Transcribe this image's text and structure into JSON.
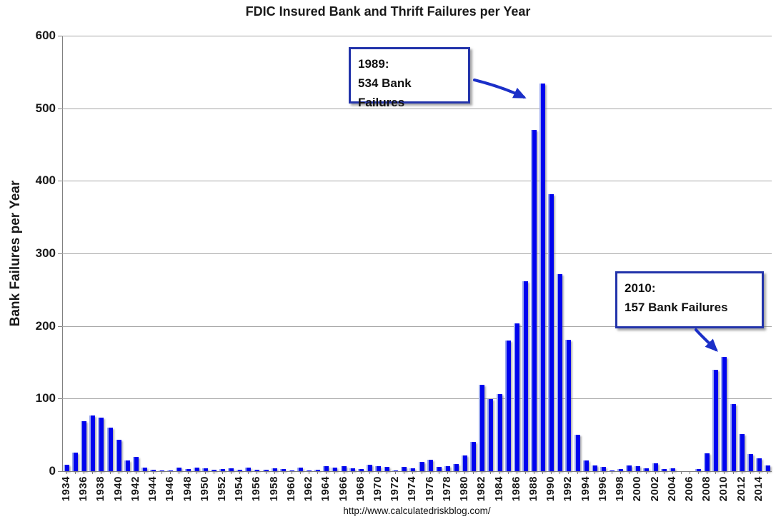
{
  "title": "FDIC Insured Bank and Thrift Failures per Year",
  "ylabel": "Bank Failures per Year",
  "footer_url": "http://www.calculatedriskblog.com/",
  "annotations": [
    {
      "line1": "1989:",
      "line2": "534 Bank Failures",
      "year": 1989,
      "value": 534
    },
    {
      "line1": "2010:",
      "line2": "157 Bank Failures",
      "year": 2010,
      "value": 157
    }
  ],
  "colors": {
    "bar": "#0004ee",
    "bar_highlight": "#9aa8f0",
    "annotation_border": "#2233aa",
    "arrow": "#1b2fc8",
    "gridline": "#a6a6a6",
    "axis": "#808080",
    "text": "#1a1a1a",
    "background": "#ffffff"
  },
  "chart_data": {
    "type": "bar",
    "title": "FDIC Insured Bank and Thrift Failures per Year",
    "xlabel": "",
    "ylabel": "Bank Failures per Year",
    "ylim": [
      0,
      600
    ],
    "ytick_interval": 100,
    "yticks": [
      0,
      100,
      200,
      300,
      400,
      500,
      600
    ],
    "grid": "horizontal",
    "legend": "none",
    "x_label_every": 2,
    "years": [
      1934,
      1935,
      1936,
      1937,
      1938,
      1939,
      1940,
      1941,
      1942,
      1943,
      1944,
      1945,
      1946,
      1947,
      1948,
      1949,
      1950,
      1951,
      1952,
      1953,
      1954,
      1955,
      1956,
      1957,
      1958,
      1959,
      1960,
      1961,
      1962,
      1963,
      1964,
      1965,
      1966,
      1967,
      1968,
      1969,
      1970,
      1971,
      1972,
      1973,
      1974,
      1975,
      1976,
      1977,
      1978,
      1979,
      1980,
      1981,
      1982,
      1983,
      1984,
      1985,
      1986,
      1987,
      1988,
      1989,
      1990,
      1991,
      1992,
      1993,
      1994,
      1995,
      1996,
      1997,
      1998,
      1999,
      2000,
      2001,
      2002,
      2003,
      2004,
      2005,
      2006,
      2007,
      2008,
      2009,
      2010,
      2011,
      2012,
      2013,
      2014,
      2015
    ],
    "values": [
      9,
      26,
      69,
      77,
      74,
      60,
      43,
      15,
      20,
      5,
      2,
      1,
      1,
      5,
      3,
      5,
      4,
      2,
      3,
      4,
      2,
      5,
      2,
      2,
      4,
      3,
      1,
      5,
      1,
      2,
      7,
      5,
      7,
      4,
      3,
      9,
      7,
      6,
      1,
      6,
      4,
      13,
      16,
      6,
      7,
      10,
      22,
      40,
      119,
      99,
      106,
      180,
      204,
      262,
      470,
      534,
      382,
      271,
      181,
      50,
      15,
      8,
      6,
      1,
      3,
      8,
      7,
      4,
      11,
      3,
      4,
      0,
      0,
      3,
      25,
      140,
      157,
      92,
      51,
      24,
      18,
      8
    ]
  }
}
